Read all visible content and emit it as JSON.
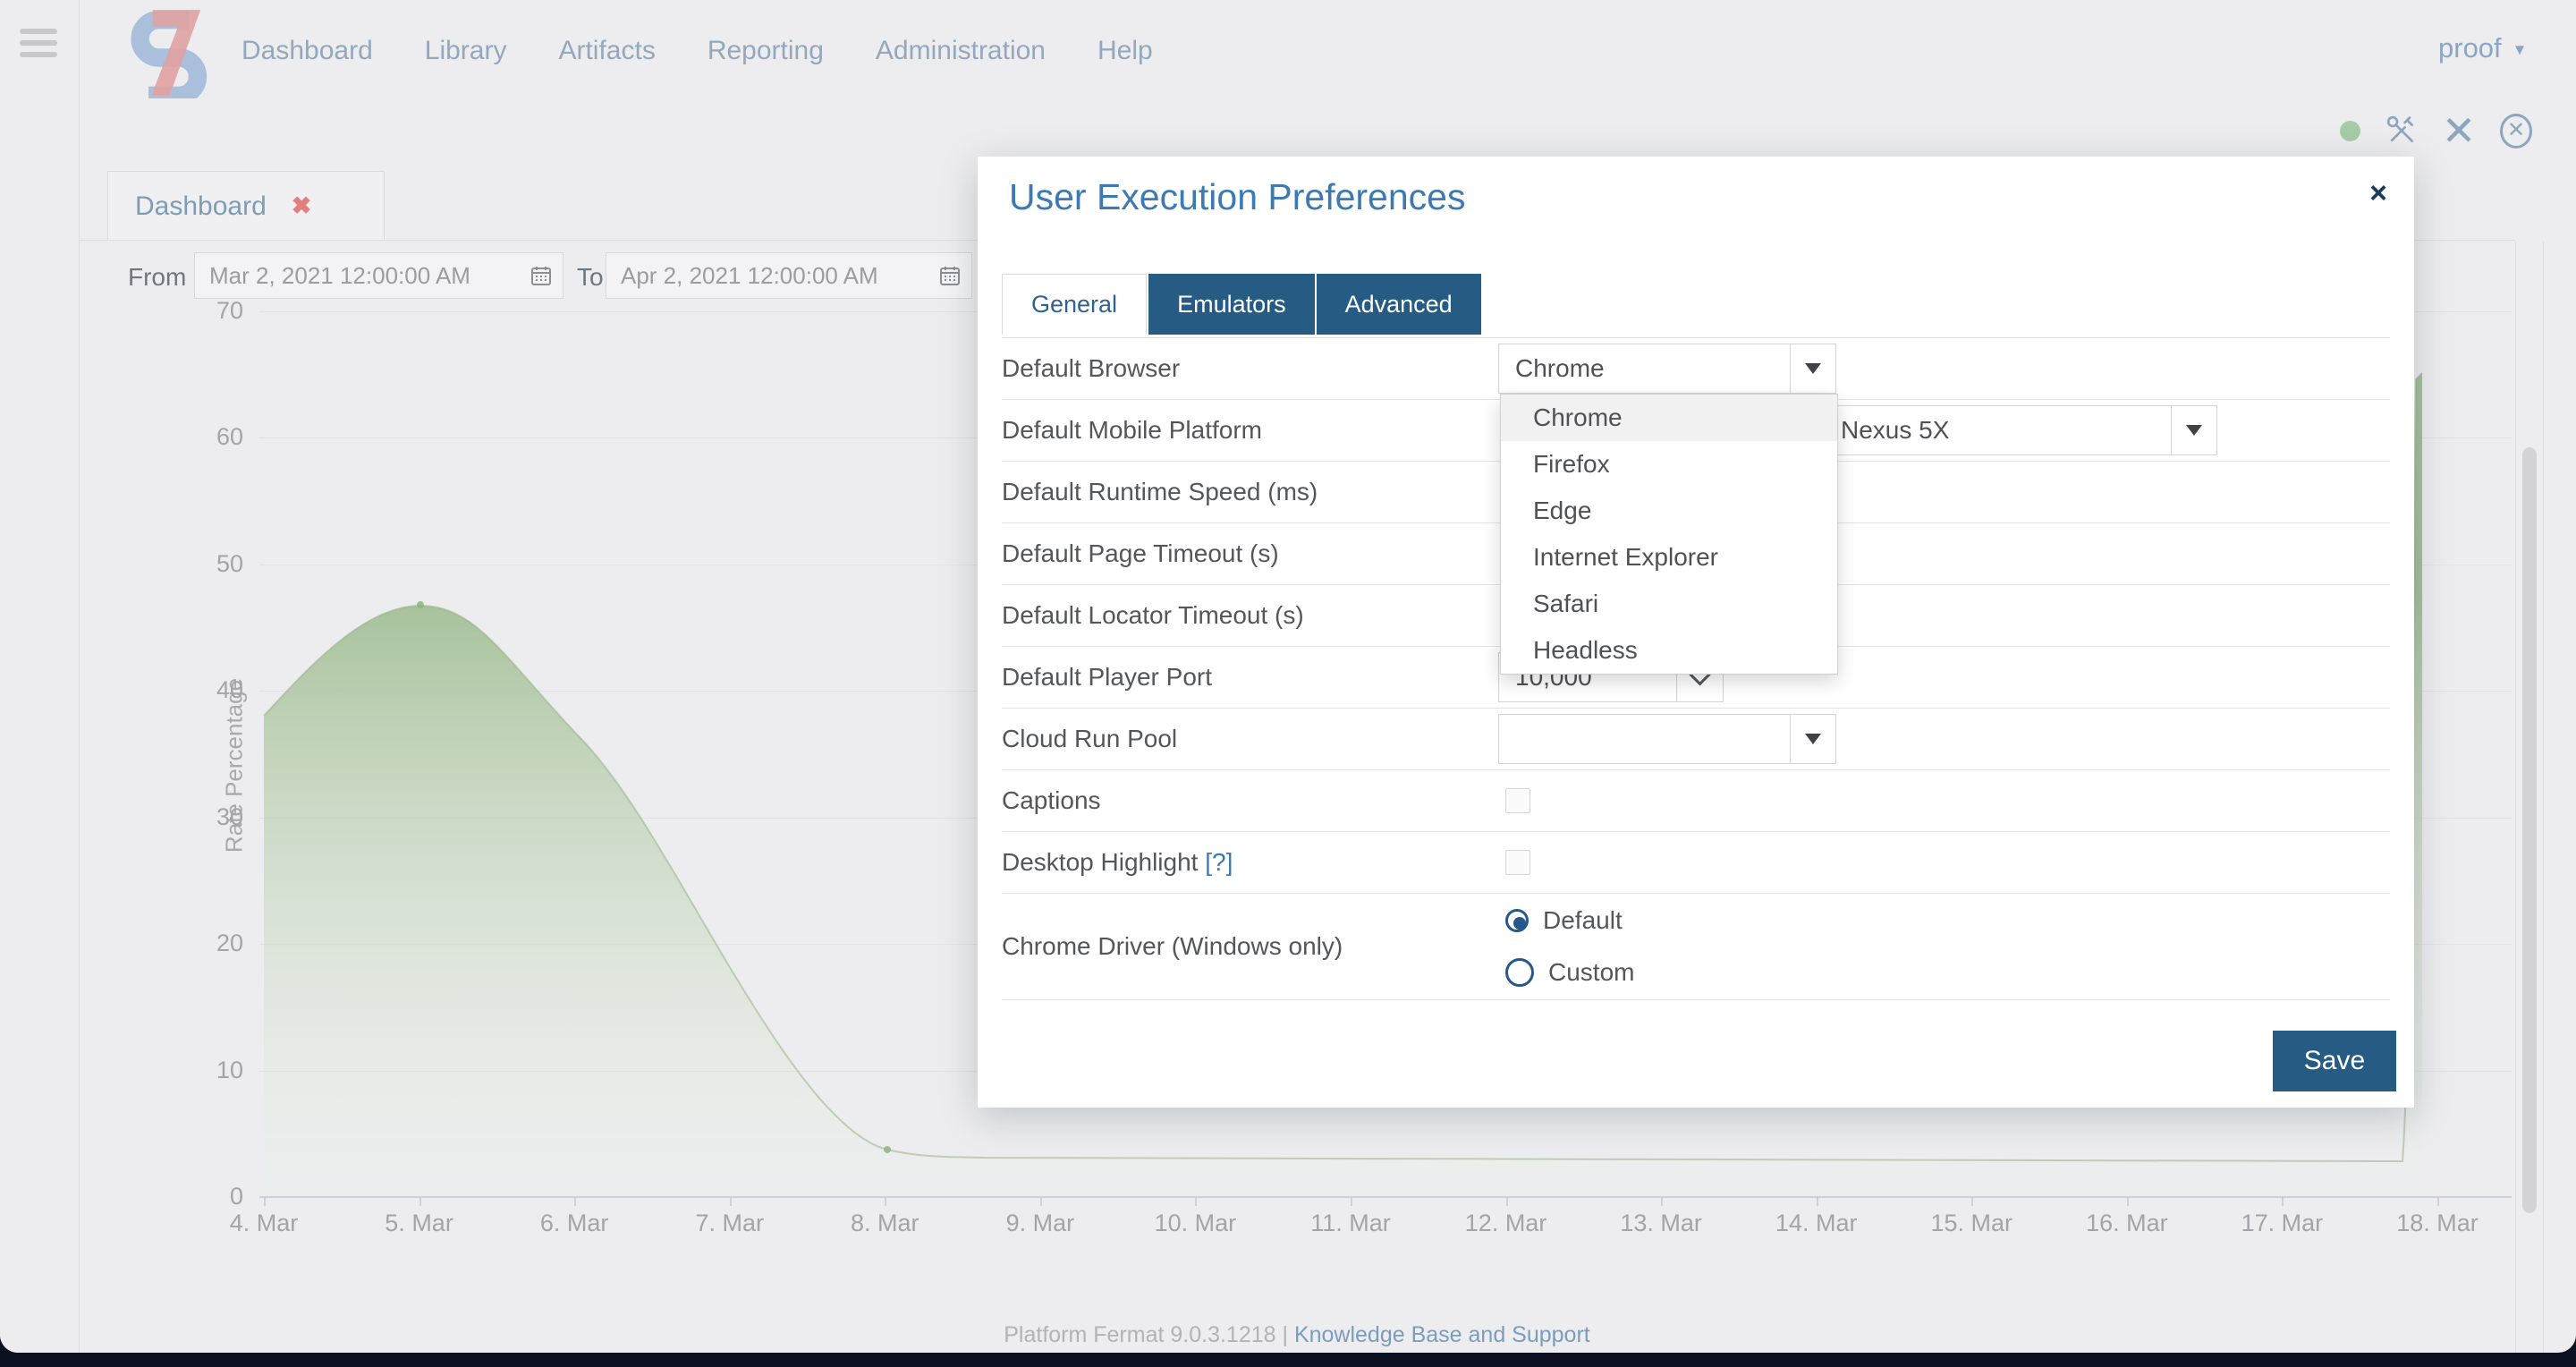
{
  "header": {
    "nav": [
      "Dashboard",
      "Library",
      "Artifacts",
      "Reporting",
      "Administration",
      "Help"
    ],
    "user": "proof",
    "caret": "▼"
  },
  "quick_actions": {
    "icons": [
      "status-dot",
      "tools",
      "close",
      "close-circle"
    ],
    "close_glyph": "✕",
    "circle_close_glyph": "✕"
  },
  "tab": {
    "label": "Dashboard",
    "close_glyph": "✖"
  },
  "filters": {
    "from_label": "From",
    "from_value": "Mar 2, 2021 12:00:00 AM",
    "to_label": "To",
    "to_value": "Apr 2, 2021 12:00:00 AM"
  },
  "chart_data": {
    "type": "area",
    "title": "",
    "xlabel": "",
    "ylabel": "Rate Percentage",
    "ylim": [
      0,
      70
    ],
    "yticks": [
      0,
      10,
      20,
      30,
      40,
      50,
      60,
      70
    ],
    "x_labels": [
      "4. Mar",
      "5. Mar",
      "6. Mar",
      "7. Mar",
      "8. Mar",
      "9. Mar",
      "10. Mar",
      "11. Mar",
      "12. Mar",
      "13. Mar",
      "14. Mar",
      "15. Mar",
      "16. Mar",
      "17. Mar",
      "18. Mar"
    ],
    "grid": true,
    "legend": false,
    "series": [
      {
        "name": "Rate Percentage",
        "color": "#a9c49c",
        "points_visible": [
          {
            "x": "4. Mar",
            "y": 38
          },
          {
            "x": "5. Mar",
            "y": 47
          },
          {
            "x": "6. Mar",
            "y": 37
          },
          {
            "x": "7. Mar",
            "y": 18
          },
          {
            "x": "8. Mar",
            "y": 5
          },
          {
            "x": "9. Mar",
            "y": 4
          }
        ],
        "note": "middle of series hidden behind dialog; steep spike to ~64 partially visible at right edge near 18. Mar"
      }
    ]
  },
  "footer": {
    "platform": "Platform Fermat 9.0.3.1218 |",
    "link": "Knowledge Base and Support"
  },
  "dialog": {
    "title": "User Execution Preferences",
    "close_glyph": "×",
    "tabs": [
      {
        "label": "General",
        "active": true
      },
      {
        "label": "Emulators",
        "active": false
      },
      {
        "label": "Advanced",
        "active": false
      }
    ],
    "fields": {
      "default_browser": {
        "label": "Default Browser",
        "value": "Chrome",
        "open": true,
        "highlighted": "Chrome",
        "options": [
          "Chrome",
          "Firefox",
          "Edge",
          "Internet Explorer",
          "Safari",
          "Headless"
        ]
      },
      "default_mobile_platform": {
        "label": "Default Mobile Platform",
        "value": "Nexus 5X"
      },
      "default_runtime_speed": {
        "label": "Default Runtime Speed (ms)"
      },
      "default_page_timeout": {
        "label": "Default Page Timeout (s)"
      },
      "default_locator_timeout": {
        "label": "Default Locator Timeout (s)"
      },
      "default_player_port": {
        "label": "Default Player Port",
        "value": "10,000"
      },
      "cloud_run_pool": {
        "label": "Cloud Run Pool",
        "value": ""
      },
      "captions": {
        "label": "Captions",
        "checked": false
      },
      "desktop_highlight": {
        "label": "Desktop Highlight",
        "help": "[?]",
        "checked": false
      },
      "chrome_driver": {
        "label": "Chrome Driver (Windows only)",
        "options": [
          "Default",
          "Custom"
        ],
        "selected": "Default"
      }
    },
    "save_label": "Save"
  },
  "colors": {
    "accent_navy": "#265b84",
    "title_blue": "#3d7ab2",
    "chart_green": "#a9c49c",
    "link_blue": "#7b9cbc",
    "tab_close_red": "#e27f7f",
    "logo_blue": "#a9bfdc",
    "logo_red": "#dfa3a3"
  }
}
